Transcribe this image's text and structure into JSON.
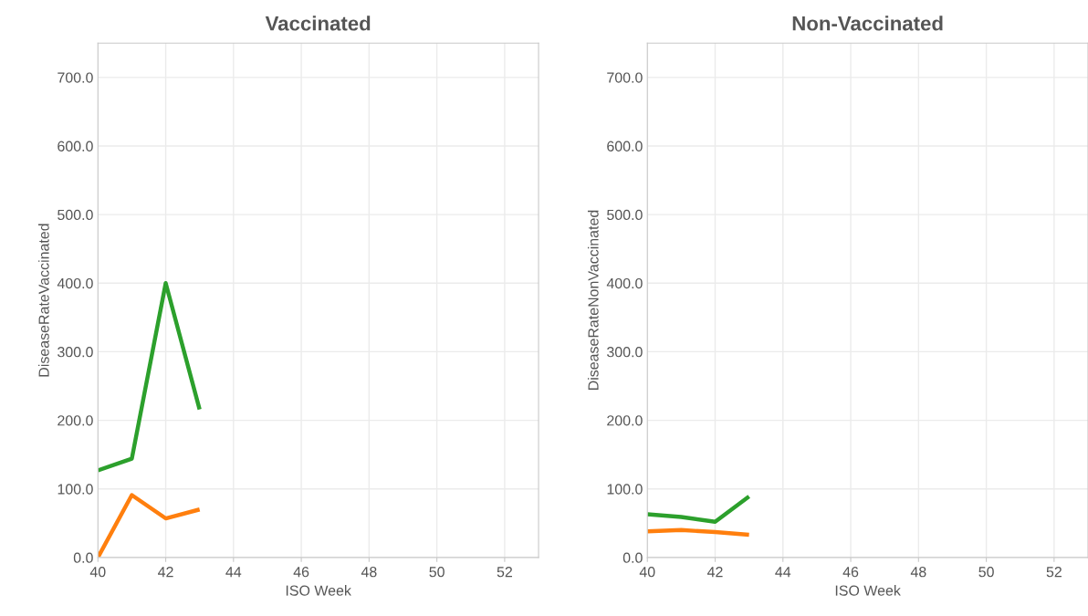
{
  "chart_data": [
    {
      "type": "line",
      "title": "Vaccinated",
      "xlabel": "ISO Week",
      "ylabel": "DiseaseRateVaccinated",
      "xlim": [
        40,
        53
      ],
      "xticks": [
        40,
        42,
        44,
        46,
        48,
        50,
        52
      ],
      "ylim": [
        0,
        750
      ],
      "yticks": [
        {
          "value": 0,
          "label": "0.0"
        },
        {
          "value": 100,
          "label": "100.0"
        },
        {
          "value": 200,
          "label": "200.0"
        },
        {
          "value": 300,
          "label": "300.0"
        },
        {
          "value": 400,
          "label": "400.0"
        },
        {
          "value": 500,
          "label": "500.0"
        },
        {
          "value": 600,
          "label": "600.0"
        },
        {
          "value": 700,
          "label": "700.0"
        }
      ],
      "grid": true,
      "x": [
        40,
        41,
        42,
        43
      ],
      "series": [
        {
          "color": "#2ca02c",
          "values": [
            127,
            144,
            400,
            216
          ]
        },
        {
          "color": "#ff7f0e",
          "values": [
            0,
            91,
            57,
            70
          ]
        }
      ]
    },
    {
      "type": "line",
      "title": "Non-Vaccinated",
      "xlabel": "ISO Week",
      "ylabel": "DiseaseRateNonVaccinated",
      "xlim": [
        40,
        53
      ],
      "xticks": [
        40,
        42,
        44,
        46,
        48,
        50,
        52
      ],
      "ylim": [
        0,
        750
      ],
      "yticks": [
        {
          "value": 0,
          "label": "0.0"
        },
        {
          "value": 100,
          "label": "100.0"
        },
        {
          "value": 200,
          "label": "200.0"
        },
        {
          "value": 300,
          "label": "300.0"
        },
        {
          "value": 400,
          "label": "400.0"
        },
        {
          "value": 500,
          "label": "500.0"
        },
        {
          "value": 600,
          "label": "600.0"
        },
        {
          "value": 700,
          "label": "700.0"
        }
      ],
      "grid": true,
      "x": [
        40,
        41,
        42,
        43
      ],
      "series": [
        {
          "color": "#2ca02c",
          "values": [
            63,
            59,
            52,
            89
          ]
        },
        {
          "color": "#ff7f0e",
          "values": [
            38,
            40,
            37,
            33
          ]
        }
      ]
    }
  ]
}
